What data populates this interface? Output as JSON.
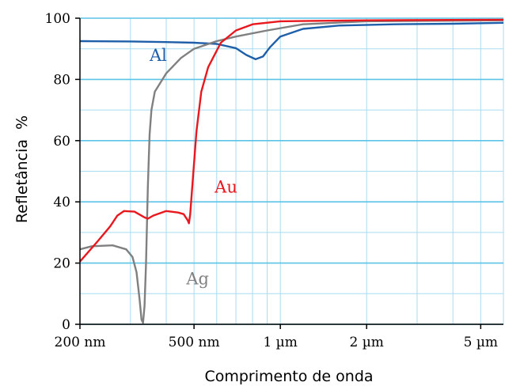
{
  "chart_data": {
    "type": "line",
    "title": "",
    "xlabel": "Comprimento de onda",
    "ylabel": "Refletância  %",
    "xscale": "log",
    "x_unit": "nm",
    "xlim": [
      200,
      6000
    ],
    "ylim": [
      0,
      100
    ],
    "grid": true,
    "legend": "inline labels",
    "x_ticks": [
      {
        "value": 200,
        "label": "200 nm"
      },
      {
        "value": 500,
        "label": "500 nm"
      },
      {
        "value": 1000,
        "label": "1 µm"
      },
      {
        "value": 2000,
        "label": "2 µm"
      },
      {
        "value": 5000,
        "label": "5 µm"
      }
    ],
    "y_ticks": [
      0,
      20,
      40,
      60,
      80,
      100
    ],
    "series": [
      {
        "name": "Al",
        "color": "#1f5ea8",
        "label_pos": {
          "x": 350,
          "y": 86
        },
        "points": [
          [
            200,
            92.5
          ],
          [
            300,
            92.4
          ],
          [
            400,
            92.2
          ],
          [
            500,
            92.0
          ],
          [
            600,
            91.6
          ],
          [
            700,
            90.2
          ],
          [
            760,
            88.0
          ],
          [
            820,
            86.6
          ],
          [
            870,
            87.5
          ],
          [
            920,
            90.5
          ],
          [
            1000,
            94.0
          ],
          [
            1200,
            96.5
          ],
          [
            1600,
            97.6
          ],
          [
            2500,
            98.0
          ],
          [
            4000,
            98.2
          ],
          [
            6000,
            98.5
          ]
        ]
      },
      {
        "name": "Ag",
        "color": "#808080",
        "label_pos": {
          "x": 470,
          "y": 13
        },
        "points": [
          [
            200,
            24.5
          ],
          [
            220,
            25.5
          ],
          [
            260,
            25.8
          ],
          [
            290,
            24.5
          ],
          [
            305,
            22.0
          ],
          [
            315,
            17.0
          ],
          [
            323,
            8.0
          ],
          [
            328,
            1.5
          ],
          [
            332,
            0.5
          ],
          [
            336,
            6.0
          ],
          [
            340,
            20.0
          ],
          [
            345,
            45.0
          ],
          [
            350,
            62.0
          ],
          [
            355,
            70.0
          ],
          [
            365,
            76.0
          ],
          [
            400,
            82.0
          ],
          [
            450,
            87.0
          ],
          [
            500,
            90.0
          ],
          [
            600,
            92.5
          ],
          [
            700,
            94.0
          ],
          [
            900,
            96.0
          ],
          [
            1200,
            98.0
          ],
          [
            2000,
            99.0
          ],
          [
            6000,
            99.3
          ]
        ]
      },
      {
        "name": "Au",
        "color": "#e8181e",
        "label_pos": {
          "x": 590,
          "y": 43
        },
        "points": [
          [
            200,
            20.5
          ],
          [
            230,
            27.0
          ],
          [
            255,
            32.0
          ],
          [
            270,
            35.5
          ],
          [
            285,
            37.0
          ],
          [
            310,
            36.8
          ],
          [
            335,
            35.0
          ],
          [
            345,
            34.5
          ],
          [
            360,
            35.5
          ],
          [
            400,
            37.0
          ],
          [
            440,
            36.5
          ],
          [
            460,
            36.0
          ],
          [
            475,
            34.0
          ],
          [
            480,
            33.0
          ],
          [
            485,
            36.0
          ],
          [
            495,
            47.0
          ],
          [
            510,
            63.0
          ],
          [
            530,
            76.0
          ],
          [
            560,
            84.0
          ],
          [
            620,
            92.0
          ],
          [
            700,
            96.0
          ],
          [
            800,
            98.0
          ],
          [
            1000,
            99.0
          ],
          [
            2000,
            99.3
          ],
          [
            6000,
            99.5
          ]
        ]
      }
    ]
  }
}
